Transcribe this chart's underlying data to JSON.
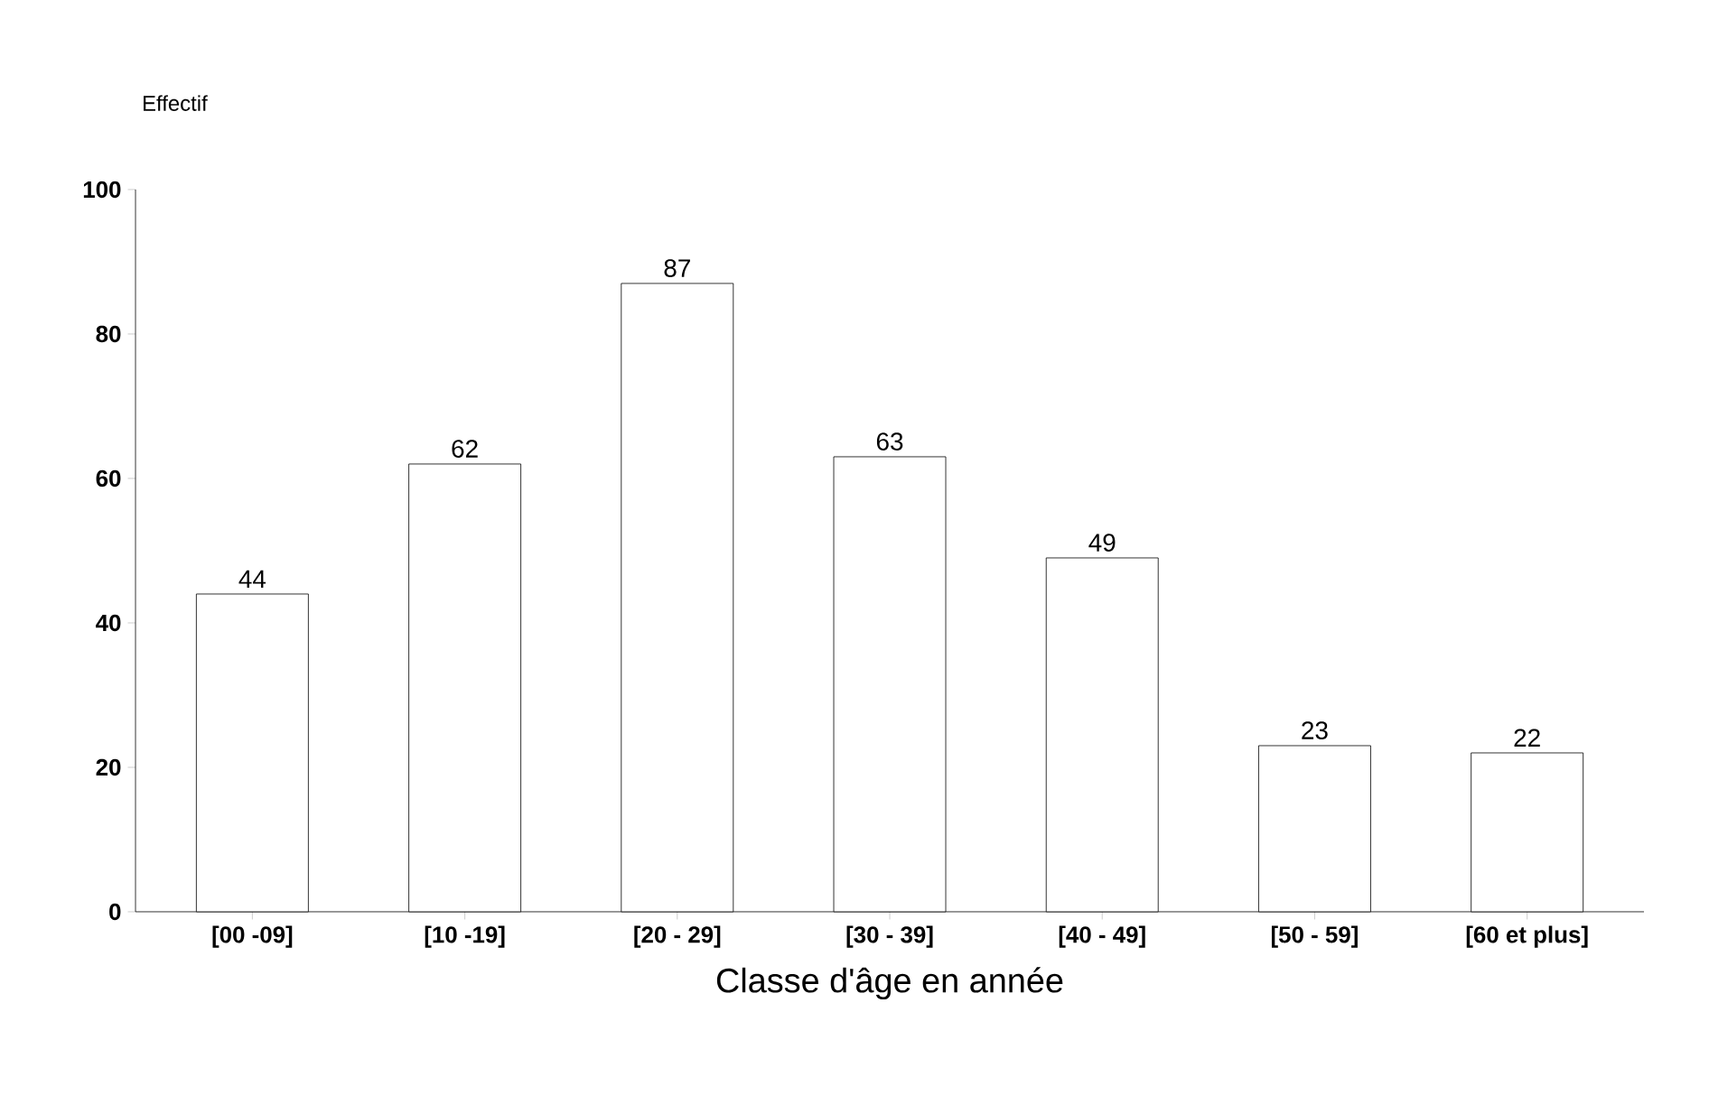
{
  "chart_data": {
    "type": "bar",
    "ylabel": "Effectif",
    "xlabel": "Classe d'âge en année",
    "categories": [
      "[00 -09]",
      "[10 -19]",
      "[20 - 29]",
      "[30 - 39]",
      "[40 - 49]",
      "[50 - 59]",
      "[60 et plus]"
    ],
    "values": [
      44,
      62,
      87,
      63,
      49,
      23,
      22
    ],
    "color": "#ffffff",
    "ylim": [
      0,
      100
    ],
    "yticks": [
      0,
      20,
      40,
      60,
      80,
      100
    ],
    "data_labels": true
  }
}
